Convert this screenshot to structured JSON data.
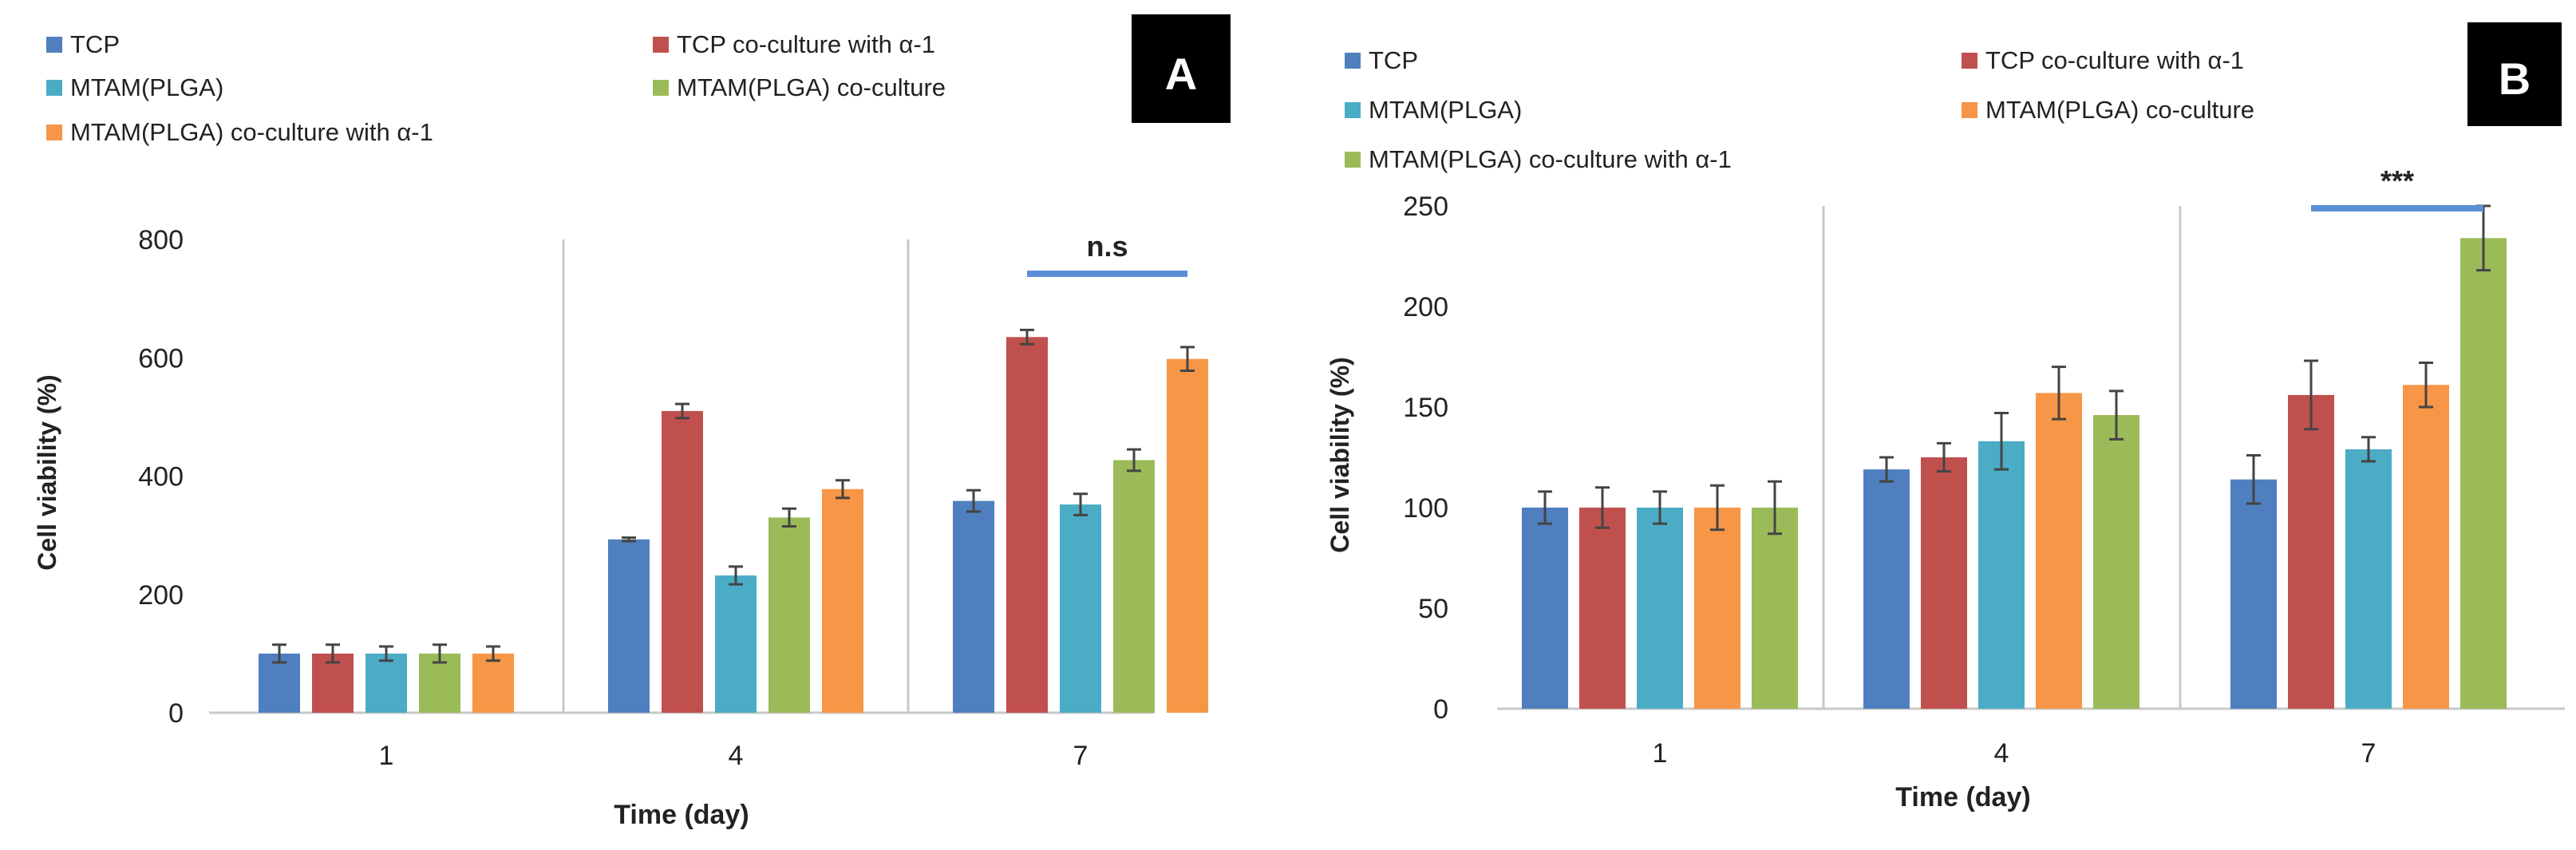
{
  "chart_data": [
    {
      "panel_label": "A",
      "type": "bar",
      "categories": [
        "1",
        "4",
        "7"
      ],
      "xlabel": "Time (day)",
      "ylabel": "Cell viability (%)",
      "ylim": [
        0,
        800
      ],
      "yticks": [
        "0",
        "200",
        "400",
        "600",
        "800"
      ],
      "grid": "vertical separators between categories",
      "legend_placement": "top",
      "series": [
        {
          "name": "TCP",
          "color": "#4f7fbe",
          "values": [
            100,
            293,
            358
          ],
          "errors": [
            15,
            3,
            18
          ]
        },
        {
          "name": "TCP co-culture with α-1",
          "color": "#c0504d",
          "values": [
            100,
            510,
            635
          ],
          "errors": [
            15,
            12,
            12
          ]
        },
        {
          "name": "MTAM(PLGA)",
          "color": "#4bacc6",
          "values": [
            100,
            232,
            352
          ],
          "errors": [
            12,
            15,
            18
          ]
        },
        {
          "name": "MTAM(PLGA) co-culture",
          "color": "#9bbb59",
          "values": [
            100,
            330,
            427
          ],
          "errors": [
            15,
            15,
            18
          ]
        },
        {
          "name": "MTAM(PLGA) co-culture with α-1",
          "color": "#f79646",
          "values": [
            100,
            378,
            598
          ],
          "errors": [
            12,
            15,
            20
          ]
        }
      ],
      "annotation": {
        "text": "n.s",
        "category": "7",
        "from_series": 1,
        "to_series": 4
      }
    },
    {
      "panel_label": "B",
      "type": "bar",
      "categories": [
        "1",
        "4",
        "7"
      ],
      "xlabel": "Time (day)",
      "ylabel": "Cell viability (%)",
      "ylim": [
        0,
        250
      ],
      "yticks": [
        "0",
        "50",
        "100",
        "150",
        "200",
        "250"
      ],
      "grid": "vertical separators between categories",
      "legend_placement": "top",
      "series": [
        {
          "name": "TCP",
          "color": "#4f7fbe",
          "values": [
            100,
            119,
            114
          ],
          "errors": [
            8,
            6,
            12
          ]
        },
        {
          "name": "TCP co-culture with α-1",
          "color": "#c0504d",
          "values": [
            100,
            125,
            156
          ],
          "errors": [
            10,
            7,
            17
          ]
        },
        {
          "name": "MTAM(PLGA)",
          "color": "#4bacc6",
          "values": [
            100,
            133,
            129
          ],
          "errors": [
            8,
            14,
            6
          ]
        },
        {
          "name": "MTAM(PLGA) co-culture",
          "color": "#f79646",
          "values": [
            100,
            157,
            161
          ],
          "errors": [
            11,
            13,
            11
          ]
        },
        {
          "name": "MTAM(PLGA) co-culture with α-1",
          "color": "#9bbb59",
          "values": [
            100,
            146,
            234
          ],
          "errors": [
            13,
            12,
            16
          ]
        }
      ],
      "annotation": {
        "text": "***",
        "category": "7",
        "from_series": 1,
        "to_series": 4
      }
    }
  ]
}
